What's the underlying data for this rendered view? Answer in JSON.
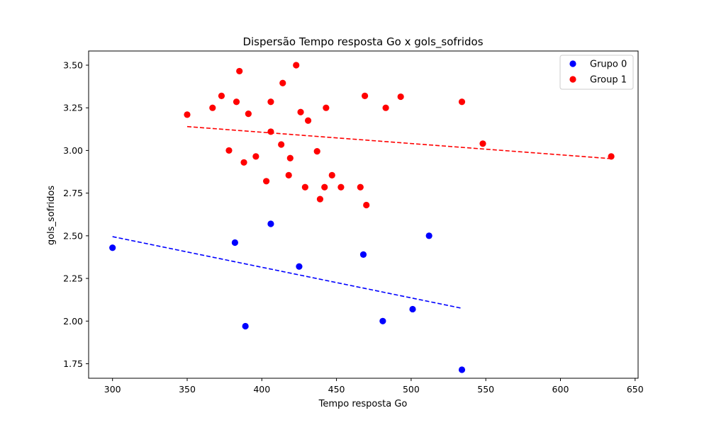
{
  "chart_data": {
    "type": "scatter",
    "title": "Dispersão Tempo resposta Go x gols_sofridos",
    "xlabel": "Tempo resposta Go",
    "ylabel": "gols_sofridos",
    "xlim": [
      284,
      652
    ],
    "ylim": [
      1.665,
      3.583
    ],
    "xticks": [
      300,
      350,
      400,
      450,
      500,
      550,
      600,
      650
    ],
    "yticks": [
      1.75,
      2.0,
      2.25,
      2.5,
      2.75,
      3.0,
      3.25,
      3.5
    ],
    "ytick_labels": [
      "1.75",
      "2.00",
      "2.25",
      "2.50",
      "2.75",
      "3.00",
      "3.25",
      "3.50"
    ],
    "grid": false,
    "legend_position": "top-right",
    "series": [
      {
        "name": "Grupo 0",
        "color": "#0000ff",
        "points": [
          [
            300,
            2.43
          ],
          [
            382,
            2.46
          ],
          [
            389,
            1.97
          ],
          [
            406,
            2.57
          ],
          [
            425,
            2.32
          ],
          [
            468,
            2.39
          ],
          [
            481,
            2.0
          ],
          [
            501,
            2.07
          ],
          [
            512,
            2.5
          ],
          [
            534,
            1.715
          ]
        ],
        "trendline": {
          "x": [
            300,
            534
          ],
          "y": [
            2.495,
            2.075
          ],
          "style": "dashed"
        }
      },
      {
        "name": "Group 1",
        "color": "#ff0000",
        "points": [
          [
            350,
            3.21
          ],
          [
            367,
            3.25
          ],
          [
            373,
            3.32
          ],
          [
            378,
            3.0
          ],
          [
            383,
            3.285
          ],
          [
            385,
            3.465
          ],
          [
            388,
            2.93
          ],
          [
            391,
            3.215
          ],
          [
            396,
            2.965
          ],
          [
            403,
            2.82
          ],
          [
            406,
            3.285
          ],
          [
            406,
            3.11
          ],
          [
            413,
            3.035
          ],
          [
            414,
            3.395
          ],
          [
            418,
            2.855
          ],
          [
            419,
            2.955
          ],
          [
            423,
            3.5
          ],
          [
            426,
            3.225
          ],
          [
            429,
            2.785
          ],
          [
            431,
            3.175
          ],
          [
            437,
            2.995
          ],
          [
            439,
            2.715
          ],
          [
            442,
            2.785
          ],
          [
            443,
            3.25
          ],
          [
            447,
            2.855
          ],
          [
            453,
            2.785
          ],
          [
            466,
            2.785
          ],
          [
            469,
            3.32
          ],
          [
            470,
            2.68
          ],
          [
            483,
            3.25
          ],
          [
            493,
            3.315
          ],
          [
            534,
            3.285
          ],
          [
            548,
            3.04
          ],
          [
            634,
            2.965
          ]
        ],
        "trendline": {
          "x": [
            350,
            634
          ],
          "y": [
            3.14,
            2.952
          ],
          "style": "dashed"
        }
      }
    ]
  }
}
